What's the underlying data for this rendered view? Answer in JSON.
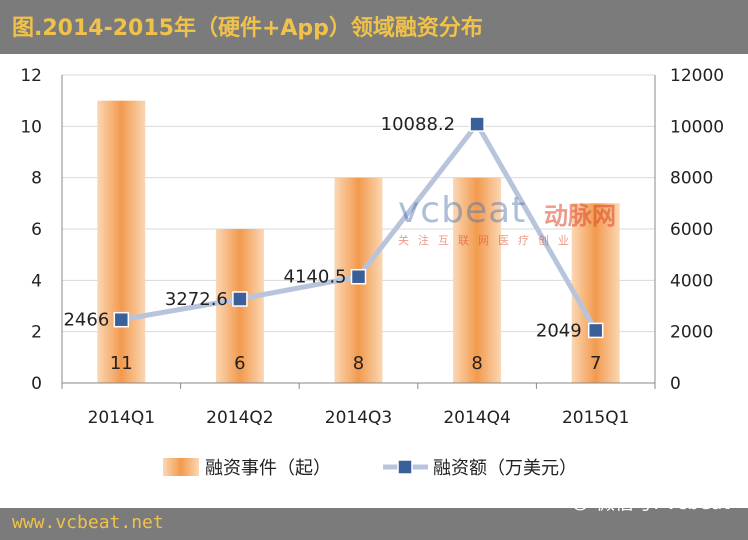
{
  "title": "图.2014-2015年（硬件+App）领域融资分布",
  "footer": {
    "website": "www.vcbeat.net",
    "wechat": "微信号: vcbeat"
  },
  "watermark": {
    "brand_en": "vcbeat",
    "brand_cn": "动脉网",
    "tagline": "关注互联网医疗创业"
  },
  "chart_data": {
    "type": "bar",
    "categories": [
      "2014Q1",
      "2014Q2",
      "2014Q3",
      "2014Q4",
      "2015Q1"
    ],
    "series": [
      {
        "name": "融资事件（起）",
        "type": "bar",
        "axis": "left",
        "values": [
          11,
          6,
          8,
          8,
          7
        ],
        "labels": [
          "11",
          "6",
          "8",
          "8",
          "7"
        ],
        "color": "#f2a25c"
      },
      {
        "name": "融资额（万美元）",
        "type": "line",
        "axis": "right",
        "values": [
          2466,
          3272.6,
          4140.5,
          10088.2,
          2049
        ],
        "labels": [
          "2466",
          "3272.6",
          "4140.5",
          "10088.2",
          "2049"
        ],
        "color": "#3a5f99",
        "line_color": "#b8c4dc"
      }
    ],
    "y_left": {
      "range": [
        0,
        12
      ],
      "ticks": [
        "0",
        "2",
        "4",
        "6",
        "8",
        "10",
        "12"
      ]
    },
    "y_right": {
      "range": [
        0,
        12000
      ],
      "ticks": [
        "0",
        "2000",
        "4000",
        "6000",
        "8000",
        "10000",
        "12000"
      ]
    },
    "grid": true,
    "legend_position": "bottom"
  }
}
